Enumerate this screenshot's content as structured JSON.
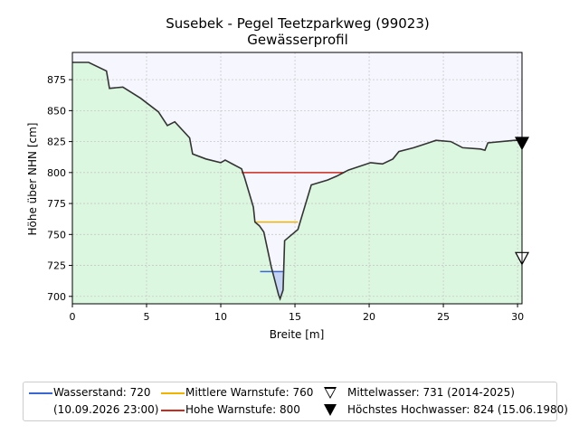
{
  "chart_data": {
    "type": "area",
    "title": "Susebek - Pegel Teetzparkweg (99023)",
    "subtitle": "Gewässerprofil",
    "xlabel": "Breite [m]",
    "ylabel": "Höhe über NHN [cm]",
    "xlim": [
      0,
      30.3
    ],
    "ylim": [
      694,
      897
    ],
    "xticks": [
      0,
      5,
      10,
      15,
      20,
      25,
      30
    ],
    "yticks": [
      700,
      725,
      750,
      775,
      800,
      825,
      850,
      875
    ],
    "grid": true,
    "legend_position": "bottom",
    "colors": {
      "terrain_fill": "#dcf7df",
      "sky_fill": "#f6f6ff",
      "profile_line": "#333333",
      "water_fill": "#c5d3f5",
      "water_line": "#3a66d4",
      "mid_warning": "#f0b400",
      "high_warning": "#cc2a1e"
    },
    "profile": {
      "x": [
        0,
        1.1,
        2.3,
        2.5,
        3.4,
        4.6,
        5.8,
        6.4,
        6.9,
        7.9,
        8.1,
        9.0,
        10.0,
        10.3,
        11.4,
        11.6,
        12.2,
        12.3,
        12.6,
        12.9,
        13.4,
        13.9,
        14.0,
        14.2,
        14.3,
        15.2,
        16.1,
        17.2,
        17.8,
        18.6,
        20.1,
        20.9,
        21.6,
        22.0,
        23.0,
        24.0,
        24.5,
        25.5,
        26.3,
        27.5,
        27.8,
        28.0,
        29.8,
        30.3
      ],
      "y": [
        889,
        889,
        882,
        868,
        869,
        860,
        849,
        838,
        841,
        828,
        815,
        811,
        808,
        810,
        803,
        796,
        772,
        760,
        757,
        752,
        724,
        701,
        698,
        705,
        745,
        754,
        790,
        794,
        797,
        802,
        808,
        807,
        811,
        817,
        820,
        824,
        826,
        825,
        820,
        819,
        818,
        824,
        826,
        826
      ]
    },
    "water_level": {
      "value": 720,
      "x_range": [
        12.65,
        14.2
      ]
    },
    "warning_levels": [
      {
        "name": "Mittlere Warnstufe",
        "value": 760,
        "x_range": [
          12.3,
          15.2
        ]
      },
      {
        "name": "Hohe Warnstufe",
        "value": 800,
        "x_range": [
          11.4,
          18.3
        ]
      }
    ],
    "markers": [
      {
        "name": "Mittelwasser",
        "value": 731,
        "x": 30.3,
        "filled": false
      },
      {
        "name": "Höchstes Hochwasser",
        "value": 824,
        "x": 30.3,
        "filled": true
      }
    ],
    "legend": {
      "wasserstand": "Wasserstand: 720",
      "wasserstand_time": "(10.09.2026 23:00)",
      "mittlere": "Mittlere Warnstufe: 760",
      "hohe": "Hohe Warnstufe: 800",
      "mittelwasser": "Mittelwasser: 731 (2014-2025)",
      "hochwasser": "Höchstes Hochwasser: 824 (15.06.1980)"
    }
  }
}
